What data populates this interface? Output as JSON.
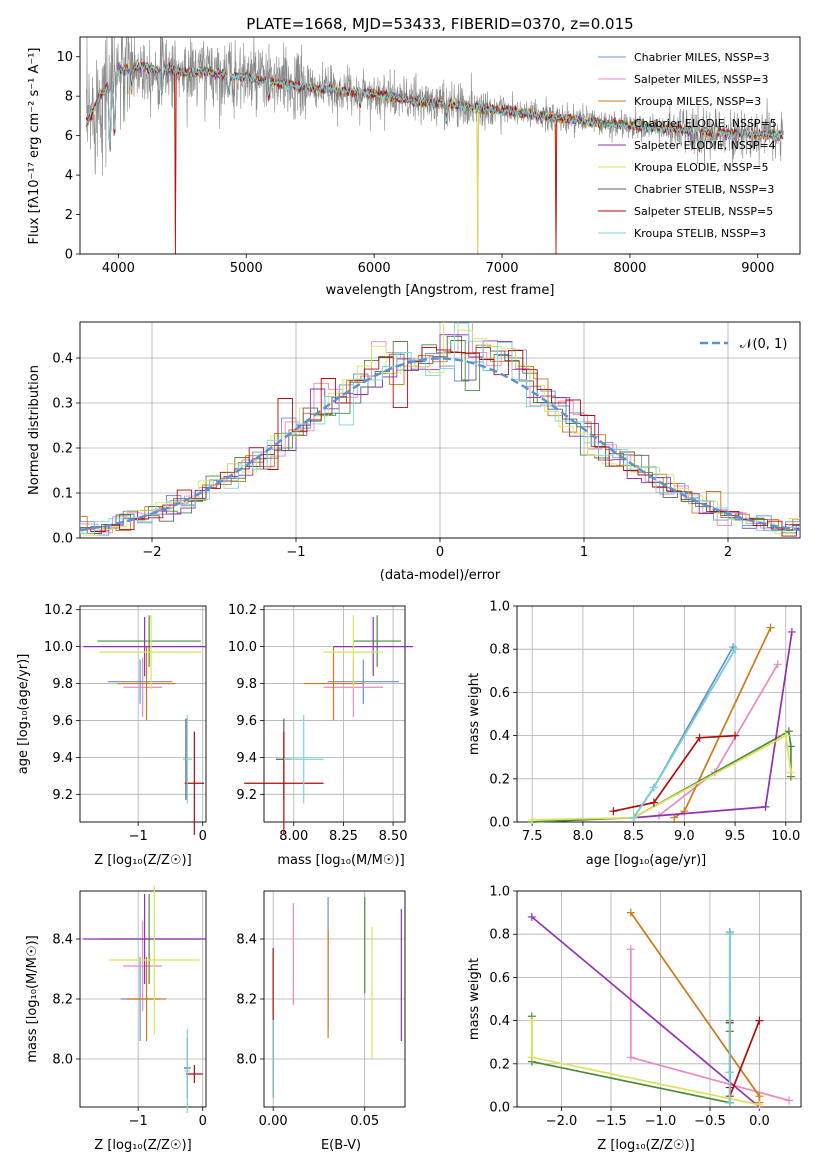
{
  "palette": [
    "#6a8fd6",
    "#e889c1",
    "#cd7a1a",
    "#4f8a3f",
    "#9131b3",
    "#dbe35a",
    "#616161",
    "#b30a0a",
    "#78d6db"
  ],
  "chart_data": [
    {
      "type": "line",
      "title": "PLATE=1668, MJD=53433, FIBERID=0370, z=0.015",
      "xlabel": "wavelength [Angstrom, rest frame]",
      "ylabel": "Flux [fλ10⁻¹⁷ erg cm⁻² s⁻¹ A⁻¹]",
      "xlim": [
        3700,
        9330
      ],
      "ylim": [
        0,
        11
      ],
      "xticks": [
        4000,
        5000,
        6000,
        7000,
        8000,
        9000
      ],
      "yticks": [
        0,
        2,
        4,
        6,
        8,
        10
      ],
      "grid": false,
      "legend_position": "top-right",
      "legend": [
        "Chabrier MILES, NSSP=3",
        "Salpeter MILES, NSSP=3",
        "Kroupa MILES, NSSP=3",
        "Chabrier ELODIE, NSSP=5",
        "Salpeter ELODIE, NSSP=4",
        "Kroupa ELODIE, NSSP=5",
        "Chabrier STELIB, NSSP=3",
        "Salpeter STELIB, NSSP=5",
        "Kroupa STELIB, NSSP=3"
      ],
      "continuum": [
        [
          3750,
          6.6
        ],
        [
          3800,
          7.2
        ],
        [
          3850,
          8.0
        ],
        [
          3900,
          8.4
        ],
        [
          3950,
          8.9
        ],
        [
          4000,
          9.3
        ],
        [
          4050,
          9.3
        ],
        [
          4100,
          9.4
        ],
        [
          4200,
          9.5
        ],
        [
          4300,
          9.3
        ],
        [
          4400,
          9.4
        ],
        [
          4500,
          9.2
        ],
        [
          4600,
          9.2
        ],
        [
          4700,
          9.3
        ],
        [
          4800,
          9.1
        ],
        [
          4900,
          9.0
        ],
        [
          5000,
          9.0
        ],
        [
          5100,
          8.8
        ],
        [
          5200,
          8.7
        ],
        [
          5300,
          8.6
        ],
        [
          5500,
          8.4
        ],
        [
          5700,
          8.3
        ],
        [
          5900,
          8.2
        ],
        [
          6000,
          8.1
        ],
        [
          6200,
          7.9
        ],
        [
          6400,
          7.7
        ],
        [
          6600,
          7.6
        ],
        [
          6800,
          7.4
        ],
        [
          7000,
          7.3
        ],
        [
          7200,
          7.1
        ],
        [
          7400,
          6.9
        ],
        [
          7600,
          6.8
        ],
        [
          7800,
          6.6
        ],
        [
          8000,
          6.5
        ],
        [
          8200,
          6.4
        ],
        [
          8400,
          6.3
        ],
        [
          8600,
          6.2
        ],
        [
          8800,
          6.1
        ],
        [
          9000,
          6.05
        ],
        [
          9200,
          6.0
        ]
      ]
    },
    {
      "type": "line",
      "xlabel": "(data-model)/error",
      "ylabel": "Normed distribution",
      "xlim": [
        -2.5,
        2.5
      ],
      "ylim": [
        0,
        0.48
      ],
      "xticks": [
        -2,
        -1,
        0,
        1,
        2
      ],
      "yticks": [
        0.0,
        0.1,
        0.2,
        0.3,
        0.4
      ],
      "grid": true,
      "legend_position": "top-right",
      "legend": [
        "𝒩(0, 1)"
      ],
      "reference_mean": 0,
      "reference_sigma": 1
    },
    {
      "type": "scatter",
      "xlabel": "Z [log₁₀(Z/Z☉)]",
      "ylabel": "age  [log₁₀(age/yr)]",
      "xlim": [
        -1.9,
        0.05
      ],
      "ylim": [
        9.05,
        10.22
      ],
      "xticks": [
        -1,
        0
      ],
      "yticks": [
        9.2,
        9.4,
        9.6,
        9.8,
        10.0,
        10.2
      ],
      "grid": true,
      "crosses": [
        {
          "series": 0,
          "x": -0.97,
          "y": 9.81,
          "xerr": 0.5,
          "yerr": 0.12
        },
        {
          "series": 1,
          "x": -0.93,
          "y": 9.78,
          "xerr": 0.3,
          "yerr": 0.16
        },
        {
          "series": 2,
          "x": -0.87,
          "y": 9.8,
          "xerr": 0.45,
          "yerr": 0.2
        },
        {
          "series": 3,
          "x": -0.83,
          "y": 10.03,
          "xerr": 0.8,
          "yerr": 0.14
        },
        {
          "series": 4,
          "x": -0.9,
          "y": 10.0,
          "xerr": 0.95,
          "yerr": 0.16
        },
        {
          "series": 5,
          "x": -0.8,
          "y": 9.97,
          "xerr": 0.8,
          "yerr": 0.2
        },
        {
          "series": 6,
          "x": -0.26,
          "y": 9.39,
          "xerr": 0.02,
          "yerr": 0.22
        },
        {
          "series": 7,
          "x": -0.13,
          "y": 9.26,
          "xerr": 0.15,
          "yerr": 0.28
        },
        {
          "series": 8,
          "x": -0.24,
          "y": 9.39,
          "xerr": 0.07,
          "yerr": 0.24
        }
      ]
    },
    {
      "type": "scatter",
      "xlabel": "mass [log₁₀(M/M☉)]",
      "ylabel": "",
      "xlim": [
        7.85,
        8.56
      ],
      "ylim": [
        9.05,
        10.22
      ],
      "xticks": [
        8.0,
        8.25,
        8.5
      ],
      "yticks": [
        9.2,
        9.4,
        9.6,
        9.8,
        10.0,
        10.2
      ],
      "grid": true,
      "crosses": [
        {
          "series": 0,
          "x": 8.35,
          "y": 9.81,
          "xerr": 0.18,
          "yerr": 0.12
        },
        {
          "series": 1,
          "x": 8.3,
          "y": 9.78,
          "xerr": 0.15,
          "yerr": 0.16
        },
        {
          "series": 2,
          "x": 8.2,
          "y": 9.8,
          "xerr": 0.15,
          "yerr": 0.2
        },
        {
          "series": 3,
          "x": 8.42,
          "y": 10.03,
          "xerr": 0.12,
          "yerr": 0.14
        },
        {
          "series": 4,
          "x": 8.4,
          "y": 10.0,
          "xerr": 0.2,
          "yerr": 0.16
        },
        {
          "series": 5,
          "x": 8.3,
          "y": 9.97,
          "xerr": 0.15,
          "yerr": 0.2
        },
        {
          "series": 6,
          "x": 7.95,
          "y": 9.39,
          "xerr": 0.04,
          "yerr": 0.22
        },
        {
          "series": 7,
          "x": 7.95,
          "y": 9.26,
          "xerr": 0.2,
          "yerr": 0.28
        },
        {
          "series": 8,
          "x": 8.05,
          "y": 9.39,
          "xerr": 0.1,
          "yerr": 0.24
        }
      ]
    },
    {
      "type": "line",
      "xlabel": "age  [log₁₀(age/yr)]",
      "ylabel": "mass weight",
      "xlim": [
        7.35,
        10.15
      ],
      "ylim": [
        0,
        1.0
      ],
      "xticks": [
        7.5,
        8.0,
        8.5,
        9.0,
        9.5,
        10.0
      ],
      "yticks": [
        0.0,
        0.2,
        0.4,
        0.6,
        0.8,
        1.0
      ],
      "grid": true,
      "series": [
        {
          "x": [
            8.5,
            8.7,
            9.48
          ],
          "y": [
            0.02,
            0.16,
            0.81
          ]
        },
        {
          "x": [
            8.75,
            9.3,
            9.92
          ],
          "y": [
            0.03,
            0.23,
            0.73
          ]
        },
        {
          "x": [
            8.9,
            9.0,
            9.85
          ],
          "y": [
            0.02,
            0.05,
            0.9
          ]
        },
        {
          "x": [
            7.5,
            8.5,
            10.03,
            10.05,
            10.05
          ],
          "y": [
            0.0,
            0.02,
            0.42,
            0.35,
            0.21
          ]
        },
        {
          "x": [
            8.5,
            9.8,
            10.06
          ],
          "y": [
            0.02,
            0.07,
            0.88
          ]
        },
        {
          "x": [
            7.5,
            8.5,
            10.0,
            10.05
          ],
          "y": [
            0.01,
            0.02,
            0.4,
            0.23
          ]
        },
        {
          "x": [
            8.5,
            8.7,
            9.5
          ],
          "y": [
            0.02,
            0.16,
            0.8
          ]
        },
        {
          "x": [
            8.3,
            8.7,
            9.15,
            9.5
          ],
          "y": [
            0.05,
            0.09,
            0.39,
            0.4
          ]
        },
        {
          "x": [
            8.5,
            8.7,
            9.5
          ],
          "y": [
            0.02,
            0.16,
            0.8
          ]
        }
      ]
    },
    {
      "type": "scatter",
      "xlabel": "Z [log₁₀(Z/Z☉)]",
      "ylabel": "mass [log₁₀(M/M☉)]",
      "xlim": [
        -1.9,
        0.05
      ],
      "ylim": [
        7.84,
        8.56
      ],
      "xticks": [
        -1,
        0
      ],
      "yticks": [
        8.0,
        8.2,
        8.4
      ],
      "grid": true,
      "crosses": [
        {
          "series": 0,
          "x": -0.97,
          "y": 8.2,
          "xerr": 0.3,
          "yerr": 0.14
        },
        {
          "series": 1,
          "x": -0.93,
          "y": 8.31,
          "xerr": 0.3,
          "yerr": 0.15
        },
        {
          "series": 2,
          "x": -0.87,
          "y": 8.2,
          "xerr": 0.3,
          "yerr": 0.14
        },
        {
          "series": 3,
          "x": -0.83,
          "y": 8.4,
          "xerr": 0.8,
          "yerr": 0.15
        },
        {
          "series": 4,
          "x": -0.9,
          "y": 8.4,
          "xerr": 0.95,
          "yerr": 0.15
        },
        {
          "series": 5,
          "x": -0.75,
          "y": 8.33,
          "xerr": 0.7,
          "yerr": 0.25
        },
        {
          "series": 6,
          "x": -0.24,
          "y": 7.97,
          "xerr": 0.05,
          "yerr": 0.1
        },
        {
          "series": 7,
          "x": -0.13,
          "y": 7.95,
          "xerr": 0.13,
          "yerr": 0.03
        },
        {
          "series": 8,
          "x": -0.24,
          "y": 7.96,
          "xerr": 0.04,
          "yerr": 0.14
        }
      ]
    },
    {
      "type": "scatter",
      "xlabel": "E(B-V)",
      "ylabel": "",
      "xlim": [
        -0.005,
        0.072
      ],
      "ylim": [
        7.84,
        8.56
      ],
      "xticks": [
        0.0,
        0.05
      ],
      "yticks": [
        8.0,
        8.2,
        8.4
      ],
      "grid": true,
      "crosses": [
        {
          "series": 0,
          "x": 0.03,
          "y": 8.32,
          "xerr": 0,
          "yerr": 0.22
        },
        {
          "series": 1,
          "x": 0.011,
          "y": 8.35,
          "xerr": 0,
          "yerr": 0.17
        },
        {
          "series": 2,
          "x": 0.03,
          "y": 8.25,
          "xerr": 0,
          "yerr": 0.18
        },
        {
          "series": 3,
          "x": 0.05,
          "y": 8.38,
          "xerr": 0,
          "yerr": 0.16
        },
        {
          "series": 4,
          "x": 0.07,
          "y": 8.28,
          "xerr": 0,
          "yerr": 0.22
        },
        {
          "series": 5,
          "x": 0.054,
          "y": 8.22,
          "xerr": 0,
          "yerr": 0.22
        },
        {
          "series": 6,
          "x": 0.0,
          "y": 8.0,
          "xerr": 0,
          "yerr": 0.13
        },
        {
          "series": 7,
          "x": 0.0,
          "y": 8.12,
          "xerr": 0,
          "yerr": 0.25
        },
        {
          "series": 8,
          "x": 0.0,
          "y": 8.0,
          "xerr": 0,
          "yerr": 0.13
        }
      ]
    },
    {
      "type": "line",
      "xlabel": "Z [log₁₀(Z/Z☉)]",
      "ylabel": "mass weight",
      "xlim": [
        -2.45,
        0.42
      ],
      "ylim": [
        0,
        1.0
      ],
      "xticks": [
        -2.0,
        -1.5,
        -1.0,
        -0.5,
        0.0
      ],
      "yticks": [
        0.0,
        0.2,
        0.4,
        0.6,
        0.8,
        1.0
      ],
      "grid": true,
      "series": [
        {
          "x": [
            -0.3,
            -0.3,
            -0.3
          ],
          "y": [
            0.02,
            0.16,
            0.81
          ]
        },
        {
          "x": [
            -1.3,
            -1.3,
            0.3
          ],
          "y": [
            0.73,
            0.23,
            0.03
          ]
        },
        {
          "x": [
            -1.3,
            0.0,
            0.0
          ],
          "y": [
            0.9,
            0.05,
            0.02
          ]
        },
        {
          "x": [
            -2.3,
            -2.3,
            -0.3,
            -0.3,
            -0.3
          ],
          "y": [
            0.42,
            0.21,
            0.02,
            0.35,
            0.4
          ]
        },
        {
          "x": [
            -2.3,
            0.0
          ],
          "y": [
            0.88,
            0.0
          ]
        },
        {
          "x": [
            -2.3,
            -2.3,
            0.0
          ],
          "y": [
            0.4,
            0.23,
            0.01
          ]
        },
        {
          "x": [
            -0.3,
            -0.3,
            -0.3
          ],
          "y": [
            0.02,
            0.16,
            0.8
          ]
        },
        {
          "x": [
            -0.3,
            -0.3,
            -0.3,
            0.0
          ],
          "y": [
            0.39,
            0.09,
            0.05,
            0.4
          ]
        },
        {
          "x": [
            -0.3,
            -0.3,
            -0.3
          ],
          "y": [
            0.02,
            0.16,
            0.8
          ]
        }
      ]
    }
  ]
}
